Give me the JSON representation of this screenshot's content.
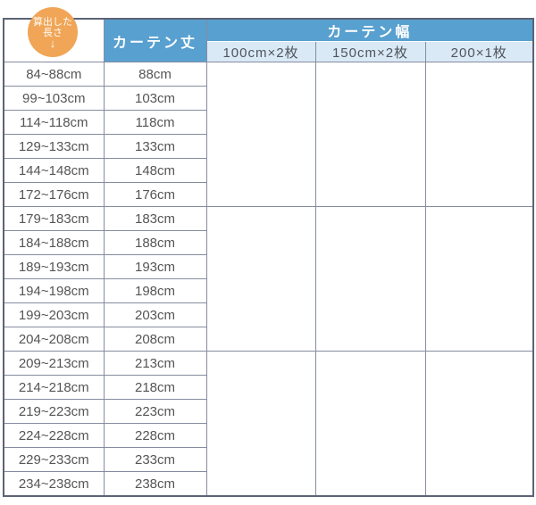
{
  "badge": {
    "line1": "算出した",
    "line2": "長さ",
    "arrow": "↓"
  },
  "table": {
    "col_headers": {
      "length": "カーテン丈",
      "width_group": "カーテン幅",
      "widths": [
        "100cm×2枚",
        "150cm×2枚",
        "200×1枚"
      ]
    },
    "group_size": 6,
    "rows": [
      {
        "range": "84~88cm",
        "length": "88cm"
      },
      {
        "range": "99~103cm",
        "length": "103cm"
      },
      {
        "range": "114~118cm",
        "length": "118cm"
      },
      {
        "range": "129~133cm",
        "length": "133cm"
      },
      {
        "range": "144~148cm",
        "length": "148cm"
      },
      {
        "range": "172~176cm",
        "length": "176cm"
      },
      {
        "range": "179~183cm",
        "length": "183cm"
      },
      {
        "range": "184~188cm",
        "length": "188cm"
      },
      {
        "range": "189~193cm",
        "length": "193cm"
      },
      {
        "range": "194~198cm",
        "length": "198cm"
      },
      {
        "range": "199~203cm",
        "length": "203cm"
      },
      {
        "range": "204~208cm",
        "length": "208cm"
      },
      {
        "range": "209~213cm",
        "length": "213cm"
      },
      {
        "range": "214~218cm",
        "length": "218cm"
      },
      {
        "range": "219~223cm",
        "length": "223cm"
      },
      {
        "range": "224~228cm",
        "length": "228cm"
      },
      {
        "range": "229~233cm",
        "length": "233cm"
      },
      {
        "range": "234~238cm",
        "length": "238cm"
      }
    ]
  },
  "colors": {
    "header_blue": "#58a0d0",
    "subheader_blue": "#d9e9f5",
    "badge_orange": "#f0a557",
    "inner_border": "#868ca0",
    "outer_border": "#5c6375",
    "body_text": "#555555",
    "subheader_text": "#4f555e"
  }
}
